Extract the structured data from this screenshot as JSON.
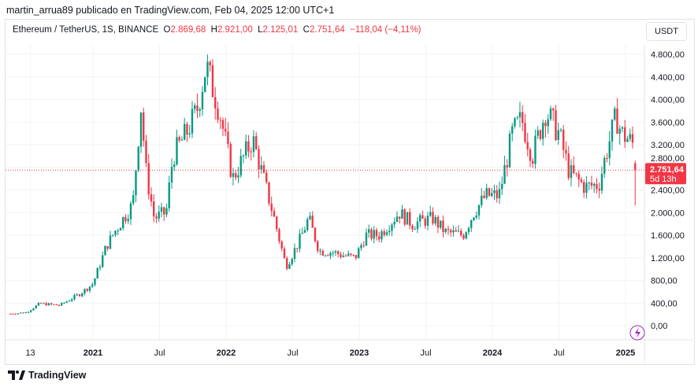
{
  "byline": "martin_arrua89 publicado en TradingView.com, Feb 04, 2025 12:00 UTC+1",
  "legend": {
    "symbol": "Ethereum / TetherUS, 1S, BINANCE",
    "o_label": "O",
    "o": "2.869,68",
    "h_label": "H",
    "h": "2.921,00",
    "l_label": "L",
    "l": "2.125,01",
    "c_label": "C",
    "c": "2.751,64",
    "change": "−118,04 (−4,11%)"
  },
  "currency_button": "USDT",
  "last_price": {
    "price": "2.751,64",
    "countdown": "5d 13h"
  },
  "footer": {
    "brand": "TradingView"
  },
  "colors": {
    "up": "#089981",
    "down": "#f23645",
    "accent": "#9c27b0"
  },
  "chart_data": {
    "type": "candlestick",
    "interval": "1 week",
    "ylim": [
      0,
      4800
    ],
    "y_ticks": [
      0,
      400,
      800,
      1200,
      1600,
      2000,
      2400,
      2800,
      3200,
      3600,
      4000,
      4400,
      4800
    ],
    "y_tick_labels": [
      "0,00",
      "400,00",
      "800,00",
      "1.200,00",
      "1.600,00",
      "2.000,00",
      "2.400,00",
      "2.800,00",
      "3.200,00",
      "3.600,00",
      "4.000,00",
      "4.400,00",
      "4.800,00"
    ],
    "x_ticks": [
      {
        "t": 2020.53,
        "label": "13"
      },
      {
        "t": 2021,
        "label": "2021"
      },
      {
        "t": 2021.5,
        "label": "Jul"
      },
      {
        "t": 2022,
        "label": "2022"
      },
      {
        "t": 2022.5,
        "label": "Jul"
      },
      {
        "t": 2023,
        "label": "2023"
      },
      {
        "t": 2023.5,
        "label": "Jul"
      },
      {
        "t": 2024,
        "label": "2024"
      },
      {
        "t": 2024.5,
        "label": "Jul"
      },
      {
        "t": 2025,
        "label": "2025"
      }
    ],
    "xlim": [
      2020.36,
      2025.1
    ],
    "last_close": 2751.64,
    "approx_price_path": [
      [
        2020.38,
        210
      ],
      [
        2020.5,
        235
      ],
      [
        2020.6,
        390
      ],
      [
        2020.75,
        360
      ],
      [
        2020.9,
        560
      ],
      [
        2021.0,
        740
      ],
      [
        2021.1,
        1400
      ],
      [
        2021.16,
        1650
      ],
      [
        2021.3,
        2150
      ],
      [
        2021.36,
        3900
      ],
      [
        2021.4,
        2700
      ],
      [
        2021.46,
        1900
      ],
      [
        2021.55,
        2000
      ],
      [
        2021.6,
        3000
      ],
      [
        2021.7,
        3400
      ],
      [
        2021.78,
        3800
      ],
      [
        2021.85,
        4600
      ],
      [
        2021.95,
        3800
      ],
      [
        2022.05,
        2600
      ],
      [
        2022.2,
        3300
      ],
      [
        2022.35,
        2000
      ],
      [
        2022.45,
        1050
      ],
      [
        2022.55,
        1500
      ],
      [
        2022.62,
        1900
      ],
      [
        2022.7,
        1320
      ],
      [
        2022.8,
        1300
      ],
      [
        2022.87,
        1250
      ],
      [
        2022.97,
        1200
      ],
      [
        2023.05,
        1600
      ],
      [
        2023.15,
        1600
      ],
      [
        2023.3,
        2000
      ],
      [
        2023.4,
        1800
      ],
      [
        2023.55,
        1900
      ],
      [
        2023.65,
        1650
      ],
      [
        2023.78,
        1600
      ],
      [
        2023.86,
        2000
      ],
      [
        2023.95,
        2300
      ],
      [
        2024.05,
        2300
      ],
      [
        2024.15,
        3400
      ],
      [
        2024.22,
        3650
      ],
      [
        2024.3,
        3000
      ],
      [
        2024.4,
        3800
      ],
      [
        2024.5,
        3400
      ],
      [
        2024.58,
        2700
      ],
      [
        2024.7,
        2450
      ],
      [
        2024.8,
        2500
      ],
      [
        2024.86,
        3100
      ],
      [
        2024.93,
        3700
      ],
      [
        2024.97,
        3400
      ],
      [
        2025.02,
        3300
      ],
      [
        2025.06,
        3200
      ],
      [
        2025.09,
        2751.64
      ]
    ]
  }
}
